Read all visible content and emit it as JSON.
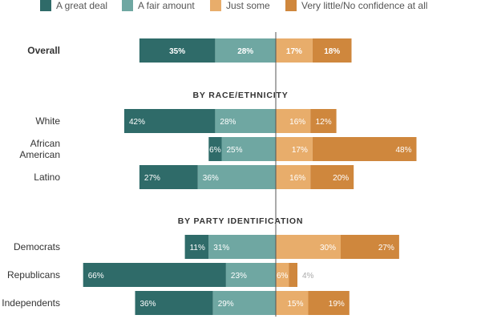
{
  "colors": {
    "great_deal": "#2f6b69",
    "fair_amount": "#6fa7a2",
    "just_some": "#e8ad6b",
    "very_little": "#cf873d",
    "divider": "#555555"
  },
  "legend": [
    {
      "label": "A great deal",
      "color": "#2f6b69"
    },
    {
      "label": "A fair amount",
      "color": "#6fa7a2"
    },
    {
      "label": "Just some",
      "color": "#e8ad6b"
    },
    {
      "label": "Very little/No confidence at all",
      "color": "#cf873d"
    }
  ],
  "chart_data": {
    "type": "bar",
    "orientation": "horizontal",
    "stacked": "diverging",
    "series": [
      {
        "name": "A great deal",
        "side": "left"
      },
      {
        "name": "A fair amount",
        "side": "left"
      },
      {
        "name": "Just some",
        "side": "right"
      },
      {
        "name": "Very little/No confidence at all",
        "side": "right"
      }
    ],
    "rows": [
      {
        "category": "Overall",
        "bold": true,
        "values": [
          35,
          28,
          17,
          18
        ]
      },
      {
        "section": "BY RACE/ETHNICITY"
      },
      {
        "category": "White",
        "values": [
          42,
          28,
          16,
          12
        ]
      },
      {
        "category": "African American",
        "category_lines": [
          "African",
          "American"
        ],
        "values": [
          6,
          25,
          17,
          48
        ]
      },
      {
        "category": "Latino",
        "values": [
          27,
          36,
          16,
          20
        ]
      },
      {
        "section": "BY PARTY IDENTIFICATION"
      },
      {
        "category": "Democrats",
        "values": [
          11,
          31,
          30,
          27
        ]
      },
      {
        "category": "Republicans",
        "values": [
          66,
          23,
          6,
          4
        ]
      },
      {
        "category": "Independents",
        "values": [
          36,
          29,
          15,
          19
        ]
      }
    ],
    "value_suffix": "%"
  }
}
